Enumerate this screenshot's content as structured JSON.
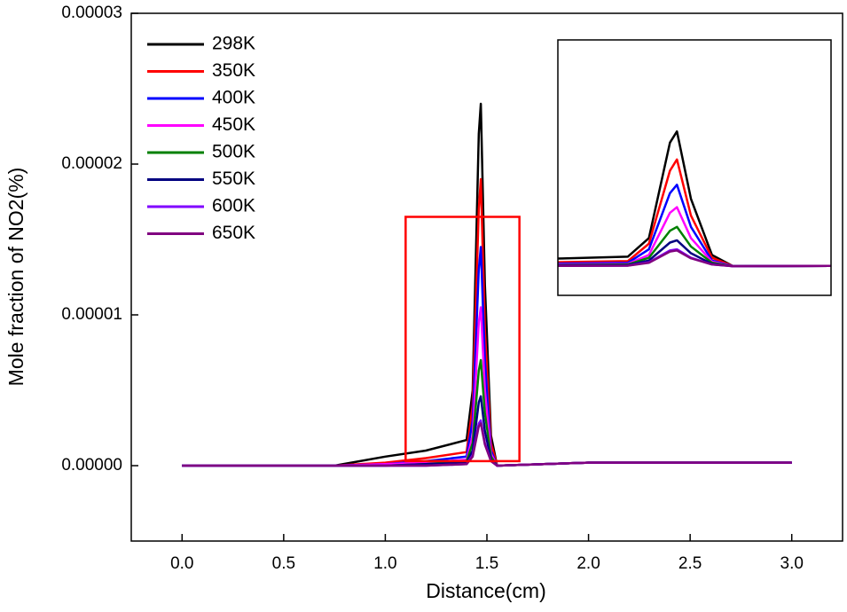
{
  "chart_data": {
    "type": "line",
    "xlabel": "Distance(cm)",
    "ylabel": "Mole fraction of NO2(%)",
    "xlim": [
      -0.25,
      3.25
    ],
    "ylim": [
      -5e-06,
      3e-05
    ],
    "xticks": [
      {
        "value": 0,
        "label": "0.0"
      },
      0.5,
      {
        "value": 1,
        "label": "1.0"
      },
      1.5,
      {
        "value": 2,
        "label": "2.0"
      },
      2.5,
      {
        "value": 3,
        "label": "3.0"
      }
    ],
    "yticks": [
      {
        "value": 0,
        "label": "0.00000"
      },
      1e-05,
      2e-05,
      3e-05
    ],
    "legend": "upper left",
    "highlight_box": {
      "color": "#ff0000",
      "xlim": [
        1.1,
        1.66
      ],
      "ylim": [
        3e-07,
        1.65e-05
      ]
    },
    "inset": {
      "xlim": [
        1.3,
        1.69
      ],
      "ylim": [
        -5.2e-06,
        4.03e-05
      ]
    },
    "x": [
      0,
      0.5,
      0.75,
      1.0,
      1.2,
      1.4,
      1.43,
      1.46,
      1.47,
      1.49,
      1.52,
      1.55,
      2.0,
      2.5,
      3.0
    ],
    "series": [
      {
        "name": "298K",
        "color": "#000000",
        "values": [
          0,
          0,
          0,
          6e-07,
          1e-06,
          1.7e-06,
          5e-06,
          2.2e-05,
          2.4e-05,
          1.2e-05,
          2e-06,
          0,
          2e-07,
          2e-07,
          2e-07
        ]
      },
      {
        "name": "350K",
        "color": "#ff0000",
        "values": [
          0,
          0,
          0,
          2e-07,
          5e-07,
          9e-07,
          4e-06,
          1.7e-05,
          1.9e-05,
          9e-06,
          1.5e-06,
          0,
          2e-07,
          2e-07,
          2e-07
        ]
      },
      {
        "name": "400K",
        "color": "#0000ff",
        "values": [
          0,
          0,
          0,
          1e-07,
          3e-07,
          6e-07,
          3e-06,
          1.3e-05,
          1.45e-05,
          7e-06,
          1e-06,
          0,
          2e-07,
          2e-07,
          2e-07
        ]
      },
      {
        "name": "450K",
        "color": "#ff00ff",
        "values": [
          0,
          0,
          0,
          1e-07,
          2e-07,
          4e-07,
          2e-06,
          9.5e-06,
          1.05e-05,
          5e-06,
          8e-07,
          0,
          2e-07,
          2e-07,
          2e-07
        ]
      },
      {
        "name": "500K",
        "color": "#008000",
        "values": [
          0,
          0,
          0,
          0,
          1e-07,
          3e-07,
          1.5e-06,
          6.3e-06,
          7e-06,
          3.5e-06,
          6e-07,
          0,
          2e-07,
          2e-07,
          2e-07
        ]
      },
      {
        "name": "550K",
        "color": "#000080",
        "values": [
          0,
          0,
          0,
          0,
          1e-07,
          2e-07,
          1e-06,
          4.2e-06,
          4.6e-06,
          2.3e-06,
          4e-07,
          0,
          2e-07,
          2e-07,
          2e-07
        ]
      },
      {
        "name": "600K",
        "color": "#8000ff",
        "values": [
          0,
          0,
          0,
          0,
          0,
          1e-07,
          7e-07,
          2.8e-06,
          3e-06,
          1.5e-06,
          3e-07,
          0,
          2e-07,
          2e-07,
          2e-07
        ]
      },
      {
        "name": "650K",
        "color": "#800080",
        "values": [
          0,
          0,
          0,
          0,
          0,
          1e-07,
          6e-07,
          2.6e-06,
          2.8e-06,
          1.4e-06,
          3e-07,
          0,
          2e-07,
          2e-07,
          2e-07
        ]
      }
    ]
  }
}
